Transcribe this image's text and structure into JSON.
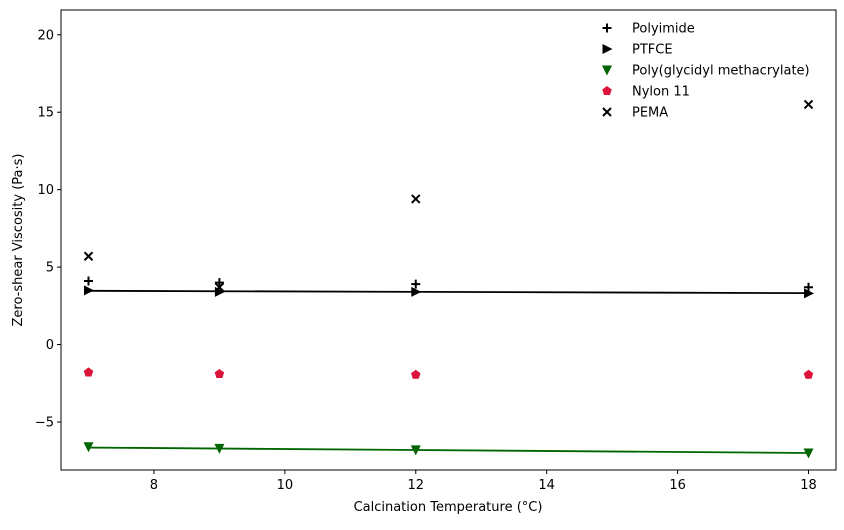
{
  "chart_data": {
    "type": "scatter",
    "title": "",
    "xlabel": "Calcination Temperature (°C)",
    "ylabel": "Zero-shear Viscosity (Pa·s)",
    "xlim": [
      6.58,
      18.42
    ],
    "ylim": [
      -8.1,
      21.6
    ],
    "xticks": [
      8,
      10,
      12,
      14,
      16,
      18
    ],
    "yticks": [
      -5,
      0,
      5,
      10,
      15,
      20
    ],
    "ytick_labels": [
      "−5",
      "0",
      "5",
      "10",
      "15",
      "20"
    ],
    "grid": false,
    "legend_position": "top-right",
    "x": [
      7,
      9,
      12,
      18
    ],
    "series": [
      {
        "name": "Polyimide",
        "marker": "plus",
        "color": "#000000",
        "values": [
          4.1,
          4.0,
          3.9,
          3.7
        ],
        "trend": null
      },
      {
        "name": "PTFCE",
        "marker": "triangle-right",
        "color": "#000000",
        "values": [
          3.5,
          3.4,
          3.4,
          3.3
        ],
        "trend": [
          3.47,
          3.32
        ]
      },
      {
        "name": "Poly(glycidyl methacrylate)",
        "marker": "triangle-down",
        "color": "#006400",
        "values": [
          -6.6,
          -6.7,
          -6.8,
          -7.0
        ],
        "trend": [
          -6.65,
          -7.0
        ]
      },
      {
        "name": "Nylon 11",
        "marker": "pentagon",
        "color": "#dc143c",
        "values": [
          -1.8,
          -1.9,
          -1.95,
          -1.95
        ],
        "trend": null
      },
      {
        "name": "PEMA",
        "marker": "x",
        "color": "#000000",
        "values": [
          5.7,
          3.7,
          9.4,
          15.5
        ],
        "trend": null
      }
    ]
  }
}
